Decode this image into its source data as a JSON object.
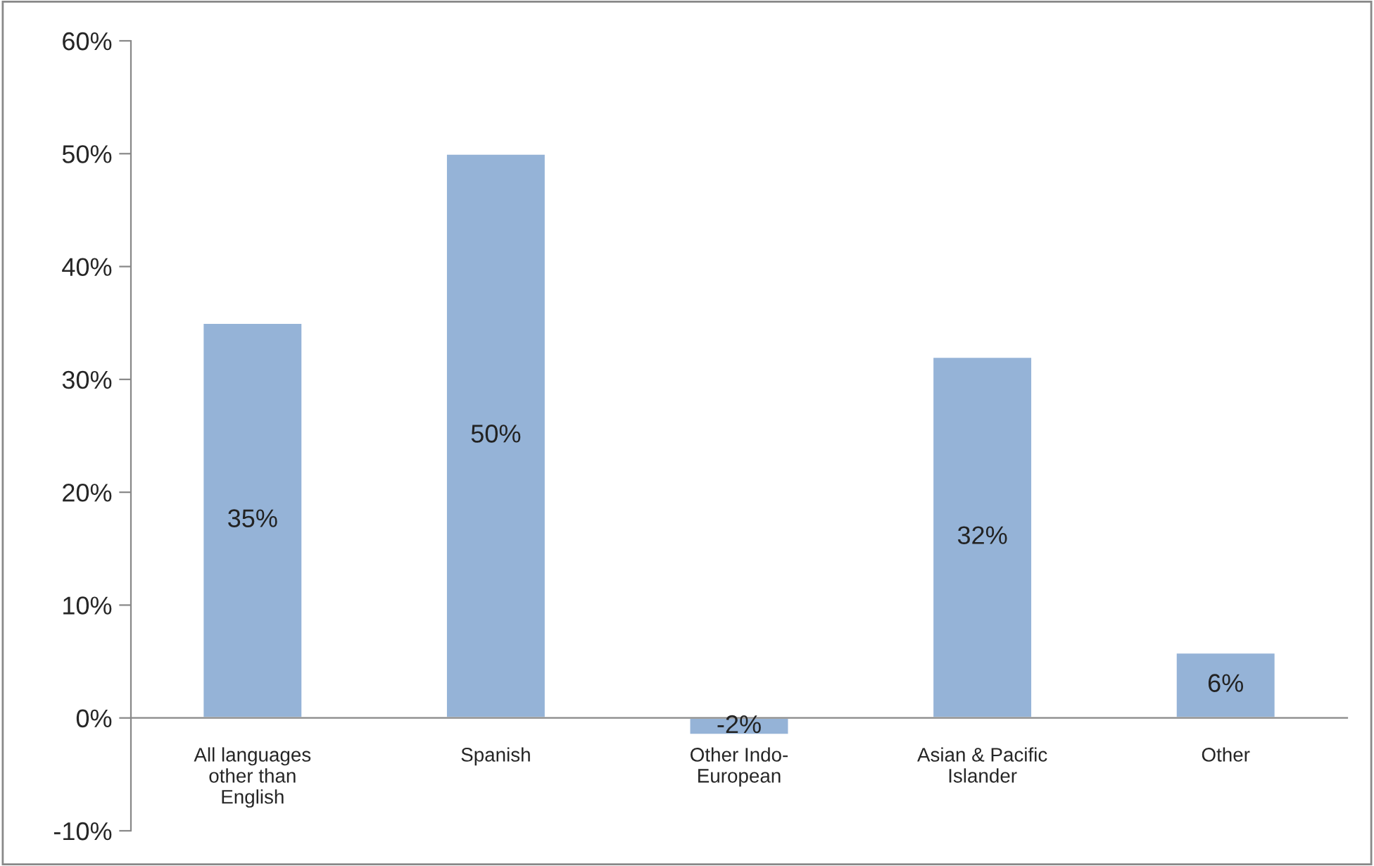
{
  "chart_data": {
    "type": "bar",
    "categories": [
      "All languages\nother than\nEnglish",
      "Spanish",
      "Other Indo-\nEuropean",
      "Asian & Pacific\nIslander",
      "Other"
    ],
    "values": [
      35,
      50,
      -1.5,
      32,
      5.8
    ],
    "value_labels": [
      "35%",
      "50%",
      "-2%",
      "32%",
      "6%"
    ],
    "color": "#95b3d7",
    "ylim": [
      -10,
      60
    ],
    "yticks": [
      {
        "value": -10,
        "label": "-10%"
      },
      {
        "value": 0,
        "label": "0%"
      },
      {
        "value": 10,
        "label": "10%"
      },
      {
        "value": 20,
        "label": "20%"
      },
      {
        "value": 30,
        "label": "30%"
      },
      {
        "value": 40,
        "label": "40%"
      },
      {
        "value": 50,
        "label": "50%"
      },
      {
        "value": 60,
        "label": "60%"
      }
    ],
    "grid": false,
    "legend": false
  }
}
